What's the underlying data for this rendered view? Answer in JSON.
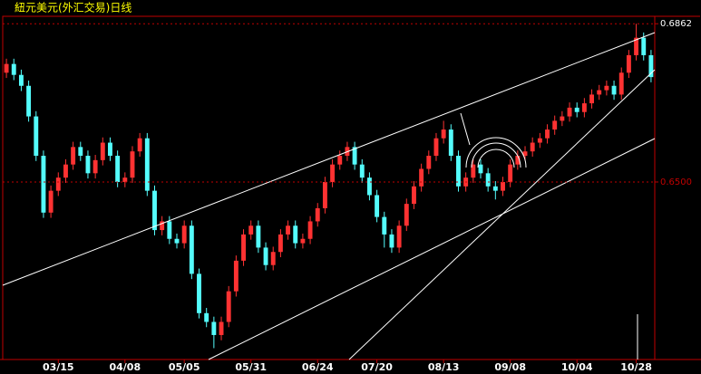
{
  "chart_data": {
    "type": "candlestick",
    "title": "紐元美元(外汇交易)日线",
    "categories": [
      null,
      null,
      null,
      null,
      null,
      null,
      null,
      "03/15",
      null,
      null,
      null,
      null,
      null,
      null,
      null,
      null,
      "04/08",
      null,
      null,
      null,
      null,
      null,
      null,
      null,
      "05/05",
      null,
      null,
      null,
      null,
      null,
      null,
      null,
      null,
      "05/31",
      null,
      null,
      null,
      null,
      null,
      null,
      null,
      null,
      "06/24",
      null,
      null,
      null,
      null,
      null,
      null,
      null,
      "07/20",
      null,
      null,
      null,
      null,
      null,
      null,
      null,
      null,
      "08/13",
      null,
      null,
      null,
      null,
      null,
      null,
      null,
      null,
      "09/08",
      null,
      null,
      null,
      null,
      null,
      null,
      null,
      null,
      "10/04",
      null,
      null,
      null,
      null,
      null,
      null,
      null,
      "10/28",
      null,
      null
    ],
    "open": [
      0.675,
      0.677,
      0.6745,
      0.672,
      0.665,
      0.656,
      0.643,
      0.648,
      0.651,
      0.654,
      0.658,
      0.656,
      0.652,
      0.655,
      0.659,
      0.656,
      0.65,
      0.651,
      0.657,
      0.66,
      0.648,
      0.639,
      0.641,
      0.637,
      0.636,
      0.64,
      0.629,
      0.62,
      0.618,
      0.615,
      0.618,
      0.625,
      0.632,
      0.638,
      0.64,
      0.635,
      0.631,
      0.634,
      0.638,
      0.64,
      0.636,
      0.637,
      0.641,
      0.644,
      0.65,
      0.654,
      0.656,
      0.658,
      0.654,
      0.651,
      0.647,
      0.642,
      0.638,
      0.635,
      0.64,
      0.645,
      0.649,
      0.653,
      0.656,
      0.66,
      0.662,
      0.656,
      0.649,
      0.651,
      0.654,
      0.652,
      0.649,
      0.648,
      0.65,
      0.654,
      0.656,
      0.657,
      0.659,
      0.66,
      0.662,
      0.664,
      0.665,
      0.667,
      0.666,
      0.668,
      0.67,
      0.671,
      0.672,
      0.67,
      0.675,
      0.679,
      0.683,
      0.679
    ],
    "close": [
      0.677,
      0.6745,
      0.672,
      0.665,
      0.656,
      0.643,
      0.648,
      0.651,
      0.654,
      0.658,
      0.656,
      0.652,
      0.655,
      0.659,
      0.656,
      0.65,
      0.651,
      0.657,
      0.66,
      0.648,
      0.639,
      0.641,
      0.637,
      0.636,
      0.64,
      0.629,
      0.62,
      0.618,
      0.615,
      0.618,
      0.625,
      0.632,
      0.638,
      0.64,
      0.635,
      0.631,
      0.634,
      0.638,
      0.64,
      0.636,
      0.637,
      0.641,
      0.644,
      0.65,
      0.654,
      0.656,
      0.658,
      0.654,
      0.651,
      0.647,
      0.642,
      0.638,
      0.635,
      0.64,
      0.645,
      0.649,
      0.653,
      0.656,
      0.66,
      0.662,
      0.656,
      0.649,
      0.651,
      0.654,
      0.652,
      0.649,
      0.648,
      0.65,
      0.654,
      0.656,
      0.657,
      0.659,
      0.66,
      0.662,
      0.664,
      0.665,
      0.667,
      0.666,
      0.668,
      0.67,
      0.671,
      0.672,
      0.67,
      0.675,
      0.679,
      0.683,
      0.679,
      0.674
    ],
    "high": [
      0.6782,
      0.6782,
      0.6757,
      0.6732,
      0.6662,
      0.6572,
      0.6492,
      0.6522,
      0.6552,
      0.6592,
      0.6592,
      0.6572,
      0.6562,
      0.6602,
      0.6602,
      0.6572,
      0.6522,
      0.6582,
      0.6612,
      0.6612,
      0.6492,
      0.6422,
      0.6422,
      0.6382,
      0.6412,
      0.6412,
      0.6302,
      0.6212,
      0.6192,
      0.6192,
      0.6262,
      0.6332,
      0.6392,
      0.6412,
      0.6412,
      0.6362,
      0.6352,
      0.6392,
      0.6412,
      0.6412,
      0.6382,
      0.6422,
      0.6452,
      0.6512,
      0.6552,
      0.6572,
      0.6592,
      0.6592,
      0.6552,
      0.6522,
      0.6482,
      0.6432,
      0.6392,
      0.6412,
      0.6462,
      0.6502,
      0.6542,
      0.6572,
      0.6612,
      0.664,
      0.6632,
      0.6572,
      0.6522,
      0.6552,
      0.6552,
      0.6532,
      0.6502,
      0.6512,
      0.6552,
      0.6572,
      0.6582,
      0.6602,
      0.6612,
      0.6632,
      0.6652,
      0.6662,
      0.6682,
      0.6682,
      0.6692,
      0.6712,
      0.6722,
      0.6732,
      0.6732,
      0.6762,
      0.6802,
      0.6862,
      0.6842,
      0.6802
    ],
    "low": [
      0.6738,
      0.6733,
      0.6708,
      0.6638,
      0.6548,
      0.6418,
      0.6418,
      0.6468,
      0.6498,
      0.6528,
      0.6548,
      0.6508,
      0.6508,
      0.6538,
      0.6548,
      0.6488,
      0.6488,
      0.6498,
      0.6558,
      0.6468,
      0.6378,
      0.6378,
      0.6358,
      0.6348,
      0.6348,
      0.6278,
      0.6188,
      0.6168,
      0.612,
      0.6138,
      0.6168,
      0.6238,
      0.6308,
      0.6368,
      0.6338,
      0.6298,
      0.6298,
      0.6328,
      0.6368,
      0.6348,
      0.6348,
      0.6358,
      0.6398,
      0.6428,
      0.6488,
      0.6528,
      0.6548,
      0.6528,
      0.6498,
      0.6458,
      0.6408,
      0.635,
      0.6338,
      0.6338,
      0.6388,
      0.6438,
      0.6478,
      0.6518,
      0.6548,
      0.6588,
      0.6548,
      0.6478,
      0.6478,
      0.6498,
      0.6508,
      0.6478,
      0.646,
      0.6468,
      0.6488,
      0.6528,
      0.6548,
      0.6558,
      0.6578,
      0.6588,
      0.6608,
      0.6628,
      0.6638,
      0.6648,
      0.6648,
      0.6668,
      0.6688,
      0.6698,
      0.6688,
      0.6688,
      0.6738,
      0.6778,
      0.6778,
      0.6728
    ],
    "up_color": "#ff3232",
    "down_color": "#54fcfc",
    "ylim": [
      0.6094,
      0.6879
    ],
    "yticks": [
      {
        "value": 0.65,
        "label": "0.6500"
      },
      0.6862
    ],
    "grid": true
  }
}
